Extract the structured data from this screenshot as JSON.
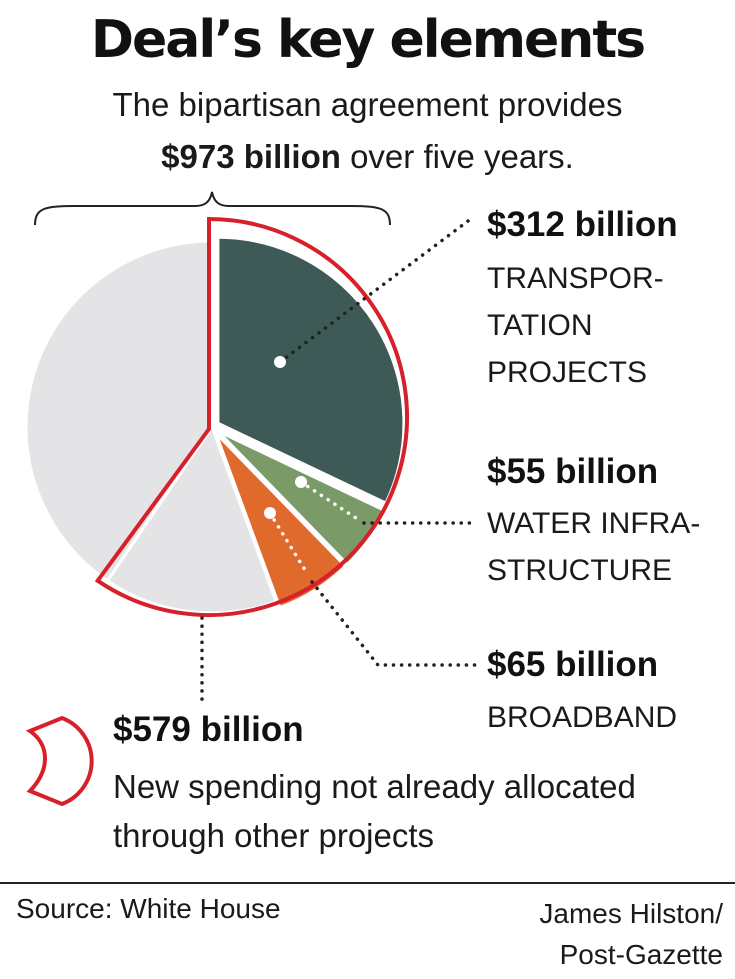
{
  "title": "Deal’s key elements",
  "subtitle_line1": "The bipartisan agreement provides",
  "subtitle_total": "$973 billion",
  "subtitle_rest": " over five years.",
  "colors": {
    "transportation": "#3e5a57",
    "water": "#7a9a68",
    "broadband": "#e0692c",
    "remainder": "#e4e4e6",
    "new_spending_outline": "#d8202a"
  },
  "chart_data": {
    "type": "pie",
    "total": 973,
    "unit": "billion",
    "slices": [
      {
        "key": "transportation",
        "amount": "$312 billion",
        "label": "TRANSPOR-\nTATION\nPROJECTS",
        "value": 312
      },
      {
        "key": "water",
        "amount": "$55 billion",
        "label": "WATER INFRA-\nSTRUCTURE",
        "value": 55
      },
      {
        "key": "broadband",
        "amount": "$65 billion",
        "label": "BROADBAND",
        "value": 65
      },
      {
        "key": "new_other",
        "amount": "",
        "label": "",
        "value": 147
      },
      {
        "key": "existing",
        "amount": "",
        "label": "",
        "value": 394
      }
    ],
    "highlight": {
      "amount": "$579 billion",
      "label": "New spending not already allocated through other projects",
      "value": 579
    }
  },
  "source": "Source: White House",
  "credit_line1": "James Hilston/",
  "credit_line2": "Post-Gazette"
}
